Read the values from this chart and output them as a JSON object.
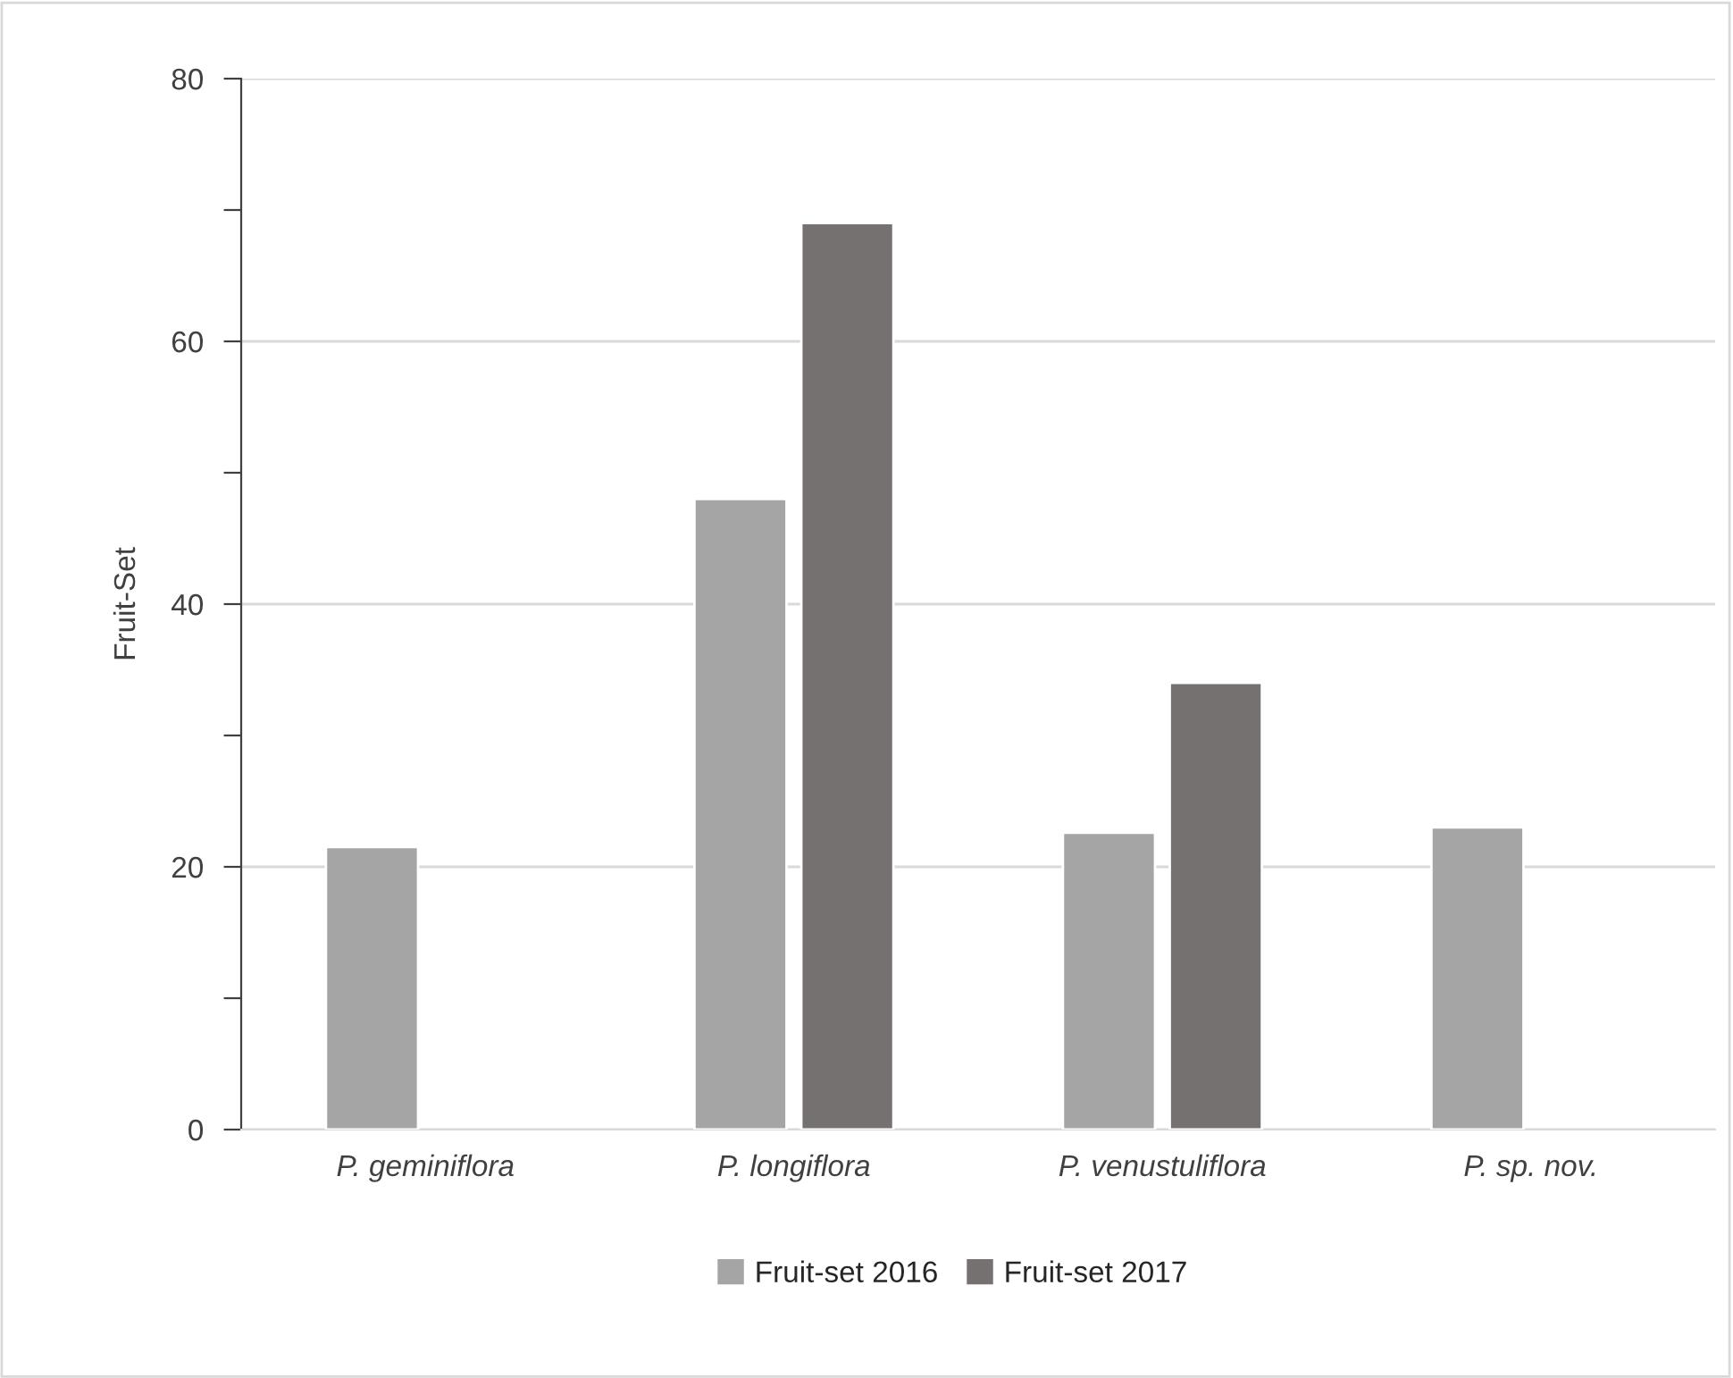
{
  "chart_data": {
    "type": "bar",
    "ylabel": "Fruit-Set",
    "categories": [
      "P. geminiflora",
      "P. longiflora",
      "P. venustuliflora",
      "P. sp. nov."
    ],
    "series": [
      {
        "name": "Fruit-set 2016",
        "color": "#a5a5a5",
        "values": [
          21.5,
          48,
          22.6,
          23
        ]
      },
      {
        "name": "Fruit-set 2017",
        "color": "#767171",
        "values": [
          null,
          69,
          34,
          null
        ]
      }
    ],
    "ylim": [
      0,
      80
    ],
    "yticks": [
      0,
      {
        "value": 10,
        "label": null
      },
      20,
      {
        "value": 30,
        "label": null
      },
      40,
      {
        "value": 50,
        "label": null
      },
      60,
      {
        "value": 70,
        "label": null
      },
      80
    ],
    "grid": "y",
    "legend": "bottom"
  }
}
